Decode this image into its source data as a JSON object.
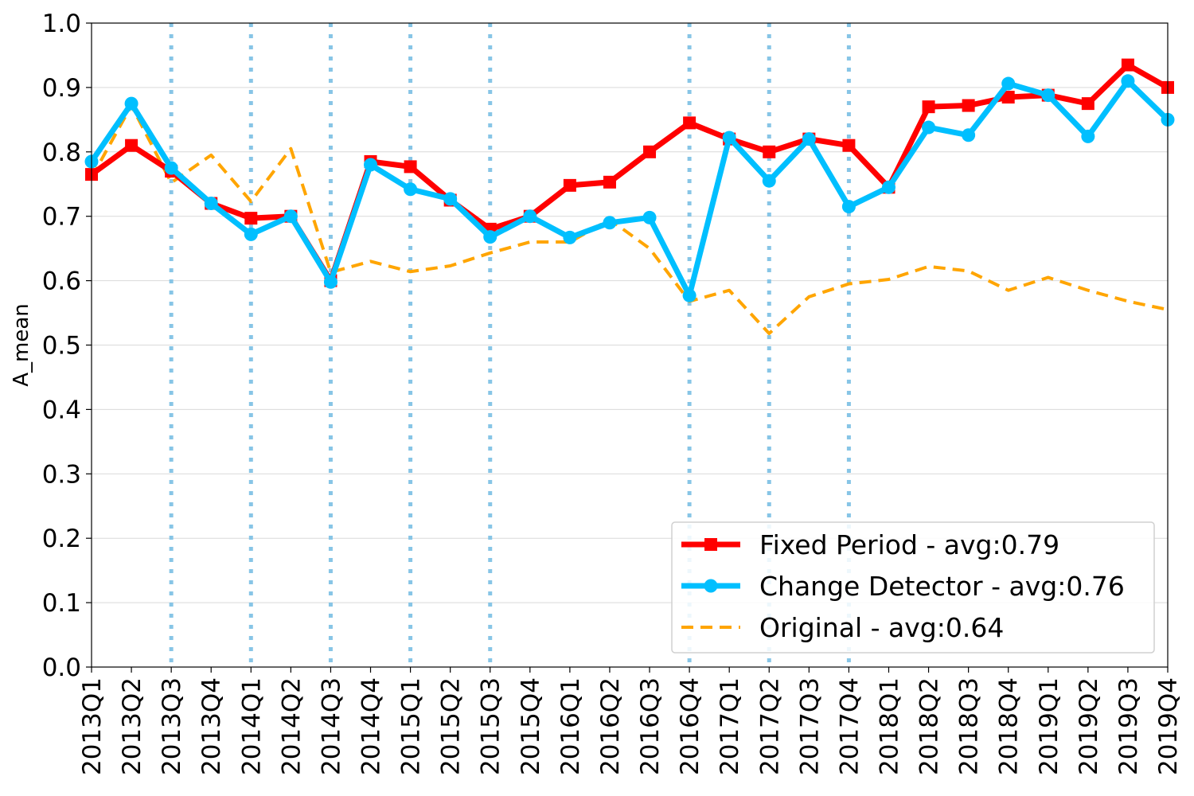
{
  "chart_data": {
    "type": "line",
    "title": "",
    "xlabel": "",
    "ylabel": "A_mean",
    "ylim": [
      0.0,
      1.0
    ],
    "yticks": [
      "0.0",
      "0.1",
      "0.2",
      "0.3",
      "0.4",
      "0.5",
      "0.6",
      "0.7",
      "0.8",
      "0.9",
      "1.0"
    ],
    "grid": "horizontal",
    "legend_position": "lower-right",
    "categories": [
      "2013Q1",
      "2013Q2",
      "2013Q3",
      "2013Q4",
      "2014Q1",
      "2014Q2",
      "2014Q3",
      "2014Q4",
      "2015Q1",
      "2015Q2",
      "2015Q3",
      "2015Q4",
      "2016Q1",
      "2016Q2",
      "2016Q3",
      "2016Q4",
      "2017Q1",
      "2017Q2",
      "2017Q3",
      "2017Q4",
      "2018Q1",
      "2018Q2",
      "2018Q3",
      "2018Q4",
      "2019Q1",
      "2019Q2",
      "2019Q3",
      "2019Q4"
    ],
    "change_points": [
      "2013Q3",
      "2014Q1",
      "2014Q3",
      "2015Q1",
      "2015Q3",
      "2016Q4",
      "2017Q2",
      "2017Q4"
    ],
    "series": [
      {
        "name": "Fixed Period - avg:0.79",
        "color": "#ff0000",
        "marker": "square",
        "style": "solid",
        "values": [
          0.765,
          0.81,
          0.77,
          0.72,
          0.697,
          0.7,
          0.6,
          0.785,
          0.777,
          0.725,
          0.68,
          0.7,
          0.748,
          0.753,
          0.8,
          0.845,
          0.82,
          0.8,
          0.82,
          0.81,
          0.745,
          0.87,
          0.872,
          0.885,
          0.888,
          0.875,
          0.935,
          0.9
        ]
      },
      {
        "name": "Change Detector - avg:0.76",
        "color": "#00bfff",
        "marker": "circle",
        "style": "solid",
        "values": [
          0.785,
          0.875,
          0.775,
          0.72,
          0.672,
          0.7,
          0.598,
          0.78,
          0.742,
          0.727,
          0.668,
          0.7,
          0.667,
          0.69,
          0.698,
          0.577,
          0.822,
          0.755,
          0.82,
          0.715,
          0.745,
          0.838,
          0.826,
          0.906,
          0.888,
          0.824,
          0.91,
          0.85
        ]
      },
      {
        "name": "Original - avg:0.64",
        "color": "#ffa500",
        "marker": "none",
        "style": "dashed",
        "values": [
          0.76,
          0.872,
          0.752,
          0.795,
          0.723,
          0.805,
          0.613,
          0.63,
          0.614,
          0.623,
          0.643,
          0.66,
          0.66,
          0.695,
          0.65,
          0.568,
          0.585,
          0.518,
          0.575,
          0.595,
          0.602,
          0.622,
          0.615,
          0.585,
          0.605,
          0.585,
          0.568,
          0.555
        ]
      }
    ]
  }
}
